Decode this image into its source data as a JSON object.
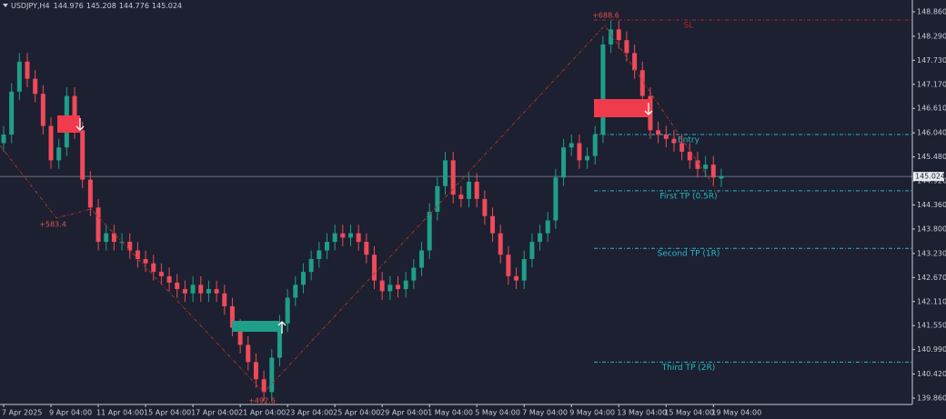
{
  "chart_data": {
    "type": "candlestick",
    "symbol": "USDJPY,H4",
    "categories": [
      "7 Apr 2025",
      null,
      null,
      null,
      null,
      null,
      "9 Apr 04:00",
      null,
      null,
      null,
      null,
      null,
      "11 Apr 04:00",
      null,
      null,
      null,
      null,
      null,
      "15 Apr 04:00",
      null,
      null,
      null,
      null,
      null,
      "17 Apr 04:00",
      null,
      null,
      null,
      null,
      null,
      "21 Apr 04:00",
      null,
      null,
      null,
      null,
      null,
      "23 Apr 04:00",
      null,
      null,
      null,
      null,
      null,
      "25 Apr 04:00",
      null,
      null,
      null,
      null,
      null,
      "29 Apr 04:00",
      null,
      null,
      null,
      null,
      null,
      "1 May 04:00",
      null,
      null,
      null,
      null,
      null,
      "5 May 04:00",
      null,
      null,
      null,
      null,
      null,
      "7 May 04:00",
      null,
      null,
      null,
      null,
      null,
      "9 May 04:00",
      null,
      null,
      null,
      null,
      null,
      "13 May 04:00",
      null,
      null,
      null,
      null,
      null,
      "15 May 04:00",
      null,
      null,
      null,
      null,
      null,
      "19 May 04:00",
      null
    ],
    "open": [
      145.8,
      146.0,
      147.0,
      147.7,
      147.3,
      146.95,
      146.2,
      145.4,
      145.7,
      146.9,
      146.1,
      144.95,
      144.3,
      143.5,
      143.7,
      143.5,
      143.5,
      143.3,
      143.1,
      143.0,
      142.8,
      142.7,
      142.55,
      142.4,
      142.3,
      142.5,
      142.3,
      142.4,
      142.3,
      142.0,
      141.5,
      141.1,
      140.7,
      140.3,
      140.0,
      140.8,
      141.6,
      142.2,
      142.5,
      142.8,
      143.1,
      143.3,
      143.5,
      143.7,
      143.6,
      143.7,
      143.5,
      143.2,
      142.6,
      142.35,
      142.5,
      142.4,
      142.6,
      142.9,
      143.3,
      144.2,
      144.8,
      145.4,
      144.6,
      144.5,
      144.9,
      144.5,
      144.1,
      143.7,
      143.2,
      142.7,
      142.6,
      143.1,
      143.5,
      143.7,
      144.0,
      145.0,
      145.7,
      145.8,
      145.4,
      145.5,
      146.0,
      148.1,
      148.45,
      148.2,
      147.9,
      147.5,
      146.9,
      146.1,
      146.0,
      145.9,
      145.8,
      145.6,
      145.4,
      145.2,
      145.3,
      144.976
    ],
    "high": [
      146.2,
      147.2,
      147.9,
      147.9,
      147.5,
      147.15,
      146.4,
      145.9,
      147.1,
      147.1,
      146.3,
      145.15,
      144.5,
      143.9,
      143.9,
      143.7,
      143.7,
      143.5,
      143.3,
      143.2,
      143.0,
      142.9,
      142.75,
      142.6,
      142.7,
      142.7,
      142.6,
      142.6,
      142.5,
      142.2,
      141.7,
      141.3,
      140.9,
      140.5,
      141.0,
      141.8,
      142.4,
      142.7,
      143.0,
      143.3,
      143.5,
      143.7,
      143.9,
      143.9,
      143.9,
      143.9,
      143.7,
      143.4,
      142.8,
      142.7,
      142.7,
      142.8,
      143.1,
      143.5,
      144.4,
      145.0,
      145.6,
      145.6,
      144.8,
      145.1,
      145.1,
      144.7,
      144.3,
      143.9,
      143.4,
      142.9,
      143.3,
      143.7,
      143.9,
      144.2,
      145.2,
      145.9,
      146.0,
      146.0,
      145.7,
      146.2,
      148.3,
      148.65,
      148.65,
      148.4,
      148.1,
      147.7,
      147.1,
      146.3,
      146.2,
      146.1,
      146.0,
      145.8,
      145.6,
      145.5,
      145.5,
      145.208
    ],
    "low": [
      145.6,
      145.8,
      146.8,
      147.1,
      146.75,
      146.0,
      145.2,
      145.2,
      145.5,
      145.9,
      144.75,
      144.1,
      143.3,
      143.3,
      143.3,
      143.3,
      143.1,
      142.9,
      142.8,
      142.6,
      142.5,
      142.35,
      142.2,
      142.1,
      142.1,
      142.1,
      142.1,
      142.1,
      141.8,
      141.3,
      140.9,
      140.5,
      140.1,
      139.8,
      139.8,
      140.6,
      141.4,
      142.0,
      142.3,
      142.6,
      142.9,
      143.1,
      143.3,
      143.4,
      143.4,
      143.3,
      143.0,
      142.4,
      142.15,
      142.15,
      142.2,
      142.2,
      142.4,
      142.7,
      143.1,
      144.0,
      144.6,
      144.4,
      144.3,
      144.3,
      144.3,
      143.9,
      143.5,
      143.0,
      142.5,
      142.4,
      142.4,
      142.9,
      143.3,
      143.5,
      143.8,
      144.8,
      145.5,
      145.2,
      145.2,
      145.3,
      145.8,
      147.9,
      148.0,
      147.7,
      147.3,
      146.7,
      145.9,
      145.8,
      145.7,
      145.6,
      145.4,
      145.2,
      145.0,
      145.0,
      144.8,
      144.776
    ],
    "close": [
      146.0,
      147.0,
      147.7,
      147.3,
      146.95,
      146.2,
      145.4,
      145.7,
      146.9,
      146.1,
      144.95,
      144.3,
      143.5,
      143.7,
      143.5,
      143.5,
      143.3,
      143.1,
      143.0,
      142.8,
      142.7,
      142.55,
      142.4,
      142.3,
      142.5,
      142.3,
      142.4,
      142.3,
      142.0,
      141.5,
      141.1,
      140.7,
      140.3,
      140.0,
      140.8,
      141.6,
      142.2,
      142.5,
      142.8,
      143.1,
      143.3,
      143.5,
      143.7,
      143.6,
      143.7,
      143.5,
      143.2,
      142.6,
      142.35,
      142.5,
      142.4,
      142.6,
      142.9,
      143.3,
      144.2,
      144.8,
      145.4,
      144.6,
      144.5,
      144.9,
      144.5,
      144.1,
      143.7,
      143.2,
      142.7,
      142.6,
      143.1,
      143.5,
      143.7,
      144.0,
      145.0,
      145.7,
      145.8,
      145.4,
      145.5,
      146.0,
      148.1,
      148.45,
      148.2,
      147.9,
      147.5,
      146.9,
      146.1,
      146.0,
      145.9,
      145.8,
      145.6,
      145.4,
      145.2,
      145.3,
      145.0,
      145.024
    ],
    "up_color": "#1f9e89",
    "down_color": "#ef4a5a",
    "ylim": [
      139.712,
      149.135
    ],
    "yticks": [
      {
        "value": 148.86,
        "label": "148.860"
      },
      {
        "value": 148.29,
        "label": "148.290"
      },
      {
        "value": 147.73,
        "label": "147.730"
      },
      {
        "value": 147.17,
        "label": "147.170"
      },
      {
        "value": 146.61,
        "label": "146.610"
      },
      {
        "value": 146.04,
        "label": "146.040"
      },
      {
        "value": 145.48,
        "label": "145.480"
      },
      {
        "value": 144.92,
        "label": "144.920"
      },
      {
        "value": 144.36,
        "label": "144.360"
      },
      {
        "value": 143.8,
        "label": "143.800"
      },
      {
        "value": 143.23,
        "label": "143.230"
      },
      {
        "value": 142.67,
        "label": "142.670"
      },
      {
        "value": 142.11,
        "label": "142.110"
      },
      {
        "value": 141.55,
        "label": "141.550"
      },
      {
        "value": 140.99,
        "label": "140.990"
      },
      {
        "value": 140.42,
        "label": "140.420"
      },
      {
        "value": 139.86,
        "label": "139.860"
      }
    ],
    "levels": [
      {
        "name": "SL",
        "value": 148.67,
        "color": "#b3262b"
      },
      {
        "name": "Entry",
        "value": 146.0,
        "color": "#2bb7c9"
      },
      {
        "name": "First TP (0.5R)",
        "value": 144.69,
        "color": "#2bb7c9"
      },
      {
        "name": "Second TP (1R)",
        "value": 143.35,
        "color": "#2bb7c9"
      },
      {
        "name": "Third TP (2R)",
        "value": 140.7,
        "color": "#2bb7c9"
      }
    ],
    "annotations": [
      "+583.4",
      "+492.6",
      "+688.6"
    ]
  }
}
